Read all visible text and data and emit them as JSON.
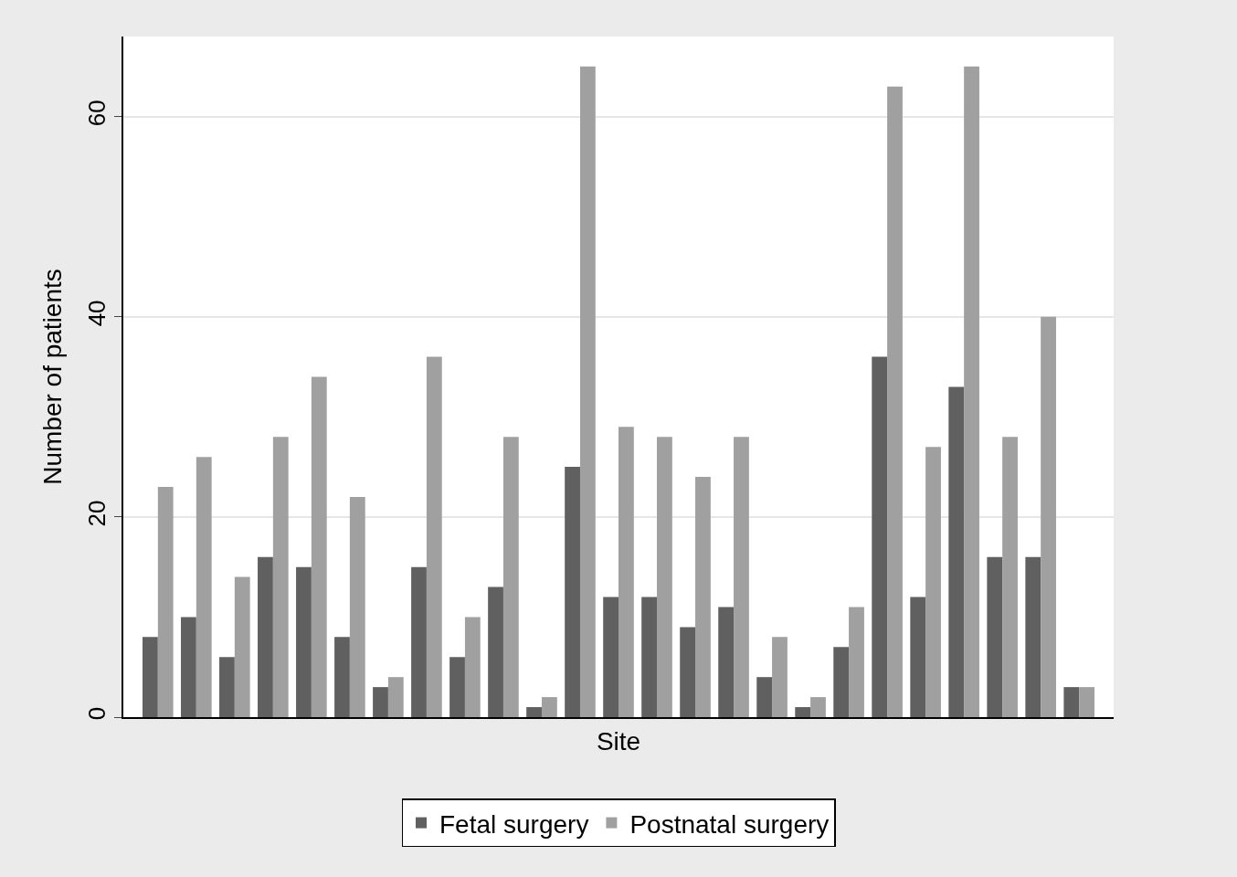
{
  "chart_data": {
    "type": "bar",
    "xlabel": "Site",
    "ylabel": "Number of patients",
    "categories": [
      null,
      null,
      null,
      null,
      null,
      null,
      null,
      null,
      null,
      null,
      null,
      null,
      null,
      null,
      null,
      null,
      null,
      null,
      null,
      null,
      null,
      null,
      null,
      null,
      null
    ],
    "series": [
      {
        "name": "Fetal surgery",
        "color": "#606060",
        "values": [
          8,
          10,
          6,
          16,
          15,
          8,
          3,
          15,
          6,
          13,
          1,
          25,
          12,
          12,
          9,
          11,
          4,
          1,
          7,
          36,
          12,
          33,
          16,
          16,
          3
        ]
      },
      {
        "name": "Postnatal surgery",
        "color": "#a0a0a0",
        "values": [
          23,
          26,
          14,
          28,
          34,
          22,
          4,
          36,
          10,
          28,
          2,
          65,
          29,
          28,
          24,
          28,
          8,
          2,
          11,
          63,
          27,
          65,
          28,
          40,
          3
        ]
      }
    ],
    "ylim": [
      0,
      68
    ],
    "yticks": [
      0,
      20,
      40,
      60
    ],
    "grid": "y",
    "legend": "bottom"
  }
}
